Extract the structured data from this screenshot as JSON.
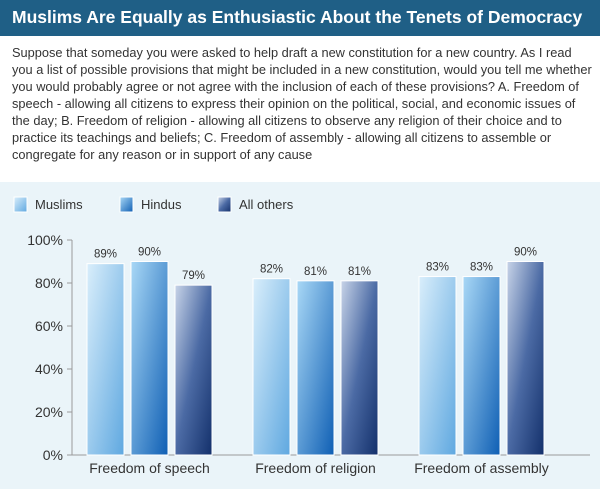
{
  "header": {
    "title": "Muslims Are Equally as Enthusiastic About the Tenets of Democracy"
  },
  "question_text": "Suppose that someday you were asked to help draft a new constitution for a new country. As I read you a list of possible provisions that might be included in a new constitution, would you tell me whether you would probably agree or not agree with the inclusion of each of these provisions? A. Freedom of speech - allowing all citizens to express their opinion on the political, social, and economic issues of the day; B. Freedom of religion - allowing all citizens to observe any religion of their choice and to practice its teachings and beliefs; C. Freedom of assembly - allowing all citizens to assemble or congregate for any reason or in support of any cause",
  "colors": {
    "title_bg": "#1f5f86",
    "panel_bg": "#eaf4f9",
    "muslims": "#8cc4ec",
    "hindus": "#2f88d8",
    "all_others": "#25467e"
  },
  "chart_data": {
    "type": "bar",
    "categories": [
      "Freedom of speech",
      "Freedom of religion",
      "Freedom of assembly"
    ],
    "series": [
      {
        "name": "Muslims",
        "values": [
          89,
          82,
          83
        ]
      },
      {
        "name": "Hindus",
        "values": [
          90,
          81,
          83
        ]
      },
      {
        "name": "All others",
        "values": [
          79,
          81,
          90
        ]
      }
    ],
    "value_labels": [
      [
        "89%",
        "82%",
        "83%"
      ],
      [
        "90%",
        "81%",
        "83%"
      ],
      [
        "79%",
        "81%",
        "90%"
      ]
    ],
    "y_ticks": [
      "0%",
      "20%",
      "40%",
      "60%",
      "80%",
      "100%"
    ],
    "ylim": [
      0,
      100
    ],
    "grid": false,
    "legend_position": "top-left"
  }
}
